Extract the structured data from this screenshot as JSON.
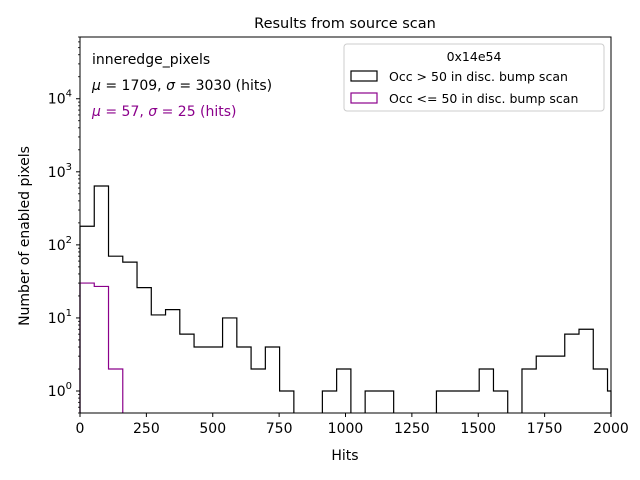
{
  "chart_data": {
    "type": "histogram",
    "title": "Results from source scan",
    "xlabel": "Hits",
    "ylabel": "Number of enabled pixels",
    "xlim": [
      0,
      2000
    ],
    "ylim": [
      0.5,
      70000
    ],
    "yscale": "log",
    "grid": false,
    "bin_width": 53.7,
    "xticks": [
      0,
      250,
      500,
      750,
      1000,
      1250,
      1500,
      1750,
      2000
    ],
    "yticks": [
      1,
      10,
      100,
      1000,
      10000
    ],
    "ytick_labels": [
      {
        "base": "10",
        "exp": "0"
      },
      {
        "base": "10",
        "exp": "1"
      },
      {
        "base": "10",
        "exp": "2"
      },
      {
        "base": "10",
        "exp": "3"
      },
      {
        "base": "10",
        "exp": "4"
      }
    ],
    "annotations": [
      {
        "text": "inneredge_pixels",
        "color": "#000000"
      },
      {
        "parts": [
          {
            "t": "μ",
            "i": true
          },
          {
            "t": " = 1709, "
          },
          {
            "t": "σ",
            "i": true
          },
          {
            "t": " = 3030 (hits)"
          }
        ],
        "color": "#000000"
      },
      {
        "parts": [
          {
            "t": "μ",
            "i": true
          },
          {
            "t": " = 57, "
          },
          {
            "t": "σ",
            "i": true
          },
          {
            "t": " = 25 (hits)"
          }
        ],
        "color": "#8b008b"
      }
    ],
    "legend": {
      "title": "0x14e54",
      "location": "top-right",
      "entries": [
        "Occ > 50 in disc. bump scan",
        "Occ <= 50 in disc. bump scan"
      ]
    },
    "series": [
      {
        "name": "Occ > 50 in disc. bump scan",
        "color": "#000000",
        "bins": [
          {
            "x0": 0,
            "x1": 53.7,
            "count": 180
          },
          {
            "x0": 53.7,
            "x1": 107.4,
            "count": 640
          },
          {
            "x0": 107.4,
            "x1": 161.1,
            "count": 70
          },
          {
            "x0": 161.1,
            "x1": 214.8,
            "count": 58
          },
          {
            "x0": 214.8,
            "x1": 268.5,
            "count": 26
          },
          {
            "x0": 268.5,
            "x1": 322.2,
            "count": 11
          },
          {
            "x0": 322.2,
            "x1": 375.9,
            "count": 13
          },
          {
            "x0": 375.9,
            "x1": 429.6,
            "count": 6
          },
          {
            "x0": 429.6,
            "x1": 537.0,
            "count": 4
          },
          {
            "x0": 537.0,
            "x1": 590.7,
            "count": 10
          },
          {
            "x0": 590.7,
            "x1": 644.4,
            "count": 4
          },
          {
            "x0": 644.4,
            "x1": 698.1,
            "count": 2
          },
          {
            "x0": 698.1,
            "x1": 751.8,
            "count": 4
          },
          {
            "x0": 751.8,
            "x1": 805.5,
            "count": 1
          },
          {
            "x0": 912.9,
            "x1": 966.6,
            "count": 1
          },
          {
            "x0": 966.6,
            "x1": 1020.3,
            "count": 2
          },
          {
            "x0": 1074.0,
            "x1": 1181.4,
            "count": 1
          },
          {
            "x0": 1342.5,
            "x1": 1503.6,
            "count": 1
          },
          {
            "x0": 1503.6,
            "x1": 1557.3,
            "count": 2
          },
          {
            "x0": 1557.3,
            "x1": 1611.0,
            "count": 1
          },
          {
            "x0": 1664.7,
            "x1": 1718.4,
            "count": 2
          },
          {
            "x0": 1718.4,
            "x1": 1825.8,
            "count": 3
          },
          {
            "x0": 1825.8,
            "x1": 1879.5,
            "count": 6
          },
          {
            "x0": 1879.5,
            "x1": 1933.2,
            "count": 7
          },
          {
            "x0": 1933.2,
            "x1": 1986.9,
            "count": 2
          },
          {
            "x0": 1986.9,
            "x1": 2000,
            "count": 1
          }
        ]
      },
      {
        "name": "Occ <= 50 in disc. bump scan",
        "color": "#8b008b",
        "bins": [
          {
            "x0": 0,
            "x1": 53.7,
            "count": 30
          },
          {
            "x0": 53.7,
            "x1": 107.4,
            "count": 27
          },
          {
            "x0": 107.4,
            "x1": 161.1,
            "count": 2
          }
        ]
      }
    ]
  }
}
